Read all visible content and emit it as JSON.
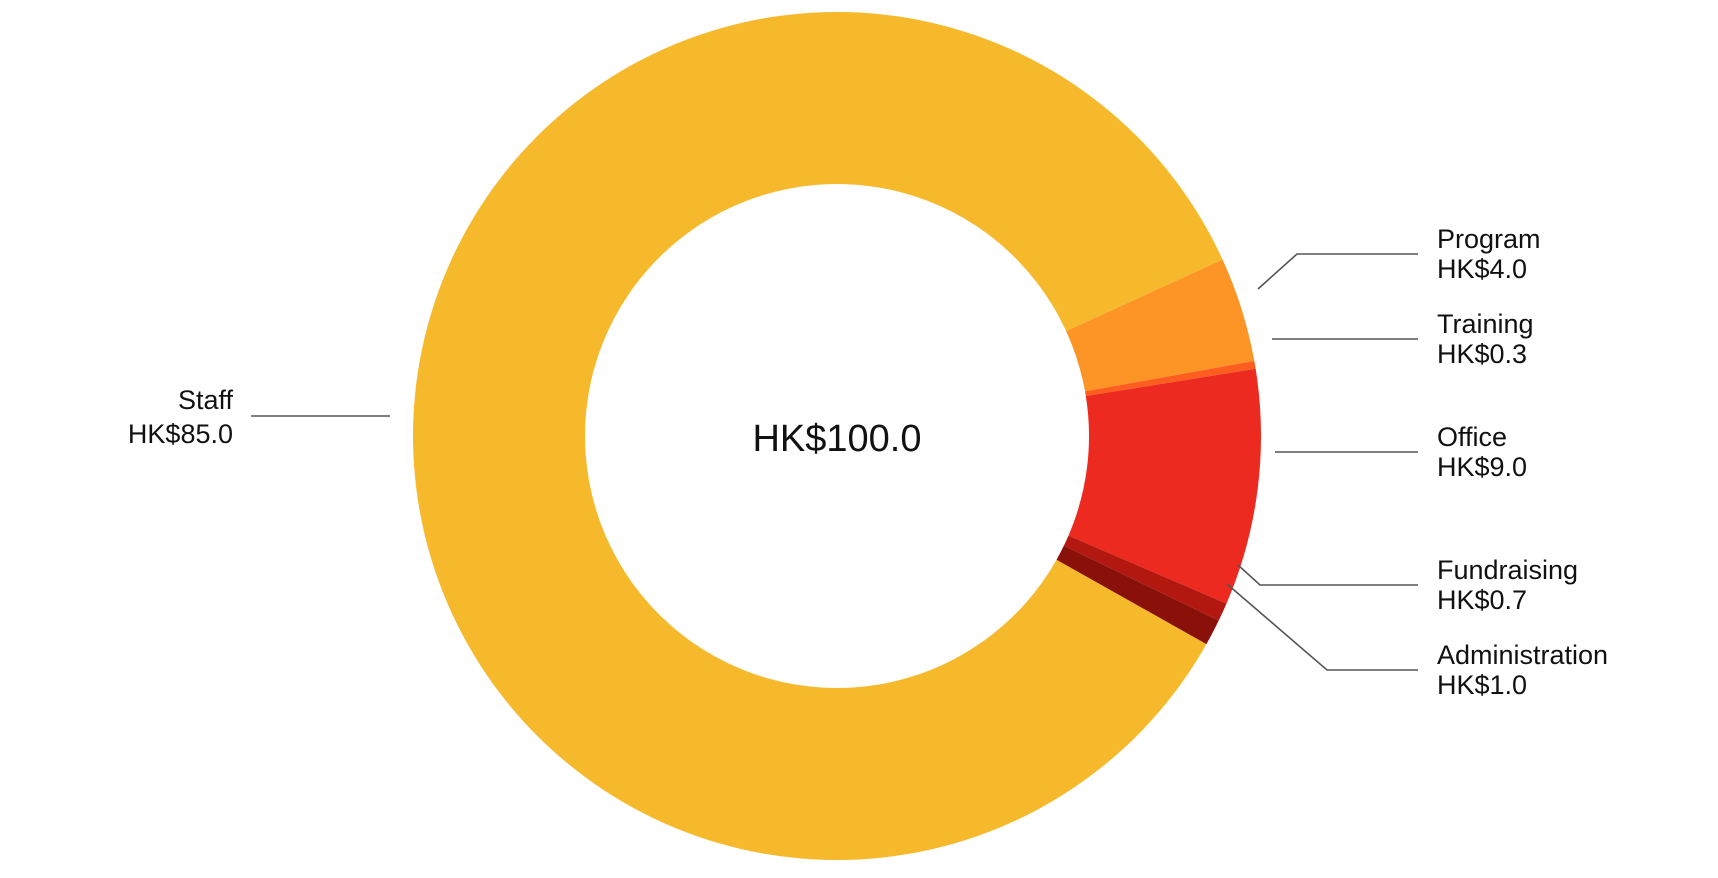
{
  "chart_data": {
    "type": "pie",
    "variant": "donut",
    "center_label": "HK$100.0",
    "slices": [
      {
        "name": "Staff",
        "value": 85.0,
        "label": "HK$85.0",
        "color": "#F6B92C"
      },
      {
        "name": "Program",
        "value": 4.0,
        "label": "HK$4.0",
        "color": "#FC9426"
      },
      {
        "name": "Training",
        "value": 0.3,
        "label": "HK$0.3",
        "color": "#FD5E1F"
      },
      {
        "name": "Office",
        "value": 9.0,
        "label": "HK$9.0",
        "color": "#EC2A20"
      },
      {
        "name": "Fundraising",
        "value": 0.7,
        "label": "HK$0.7",
        "color": "#B2180F"
      },
      {
        "name": "Administration",
        "value": 1.0,
        "label": "HK$1.0",
        "color": "#8A110A"
      }
    ]
  }
}
